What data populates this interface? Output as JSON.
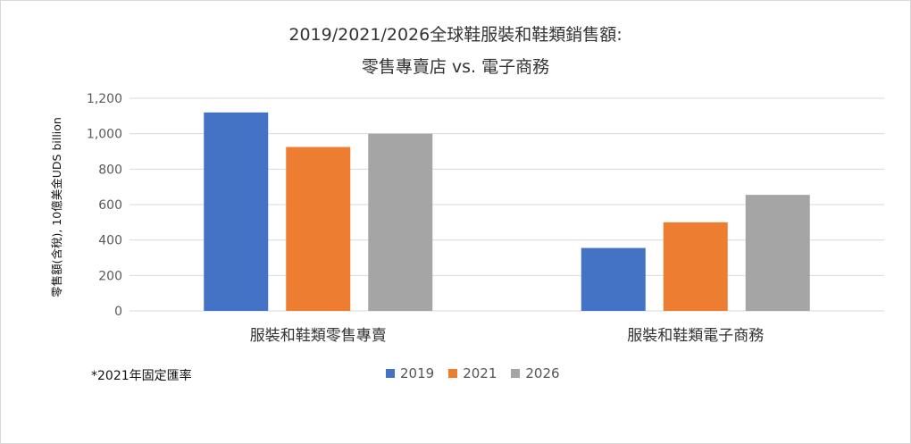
{
  "title_line1": "2019/2021/2026全球鞋服裝和鞋類銷售額:",
  "title_line2": "零售專賣店 vs. 電子商務",
  "note": "*2021年固定匯率",
  "chart_data": {
    "type": "bar",
    "categories": [
      "服裝和鞋類零售專賣",
      "服裝和鞋類電子商務"
    ],
    "series": [
      {
        "name": "2019",
        "color": "#4472c4",
        "values": [
          1120,
          355
        ]
      },
      {
        "name": "2021",
        "color": "#ed7d31",
        "values": [
          925,
          500
        ]
      },
      {
        "name": "2026",
        "color": "#a5a5a5",
        "values": [
          1000,
          655
        ]
      }
    ],
    "ylabel": "零售額(含稅), 10億美金UDS billion",
    "xlabel": "",
    "ylim": [
      0,
      1200
    ],
    "yticks": [
      "0",
      "200",
      "400",
      "600",
      "800",
      "1,000",
      "1,200"
    ],
    "grid": true,
    "legend_position": "bottom"
  }
}
